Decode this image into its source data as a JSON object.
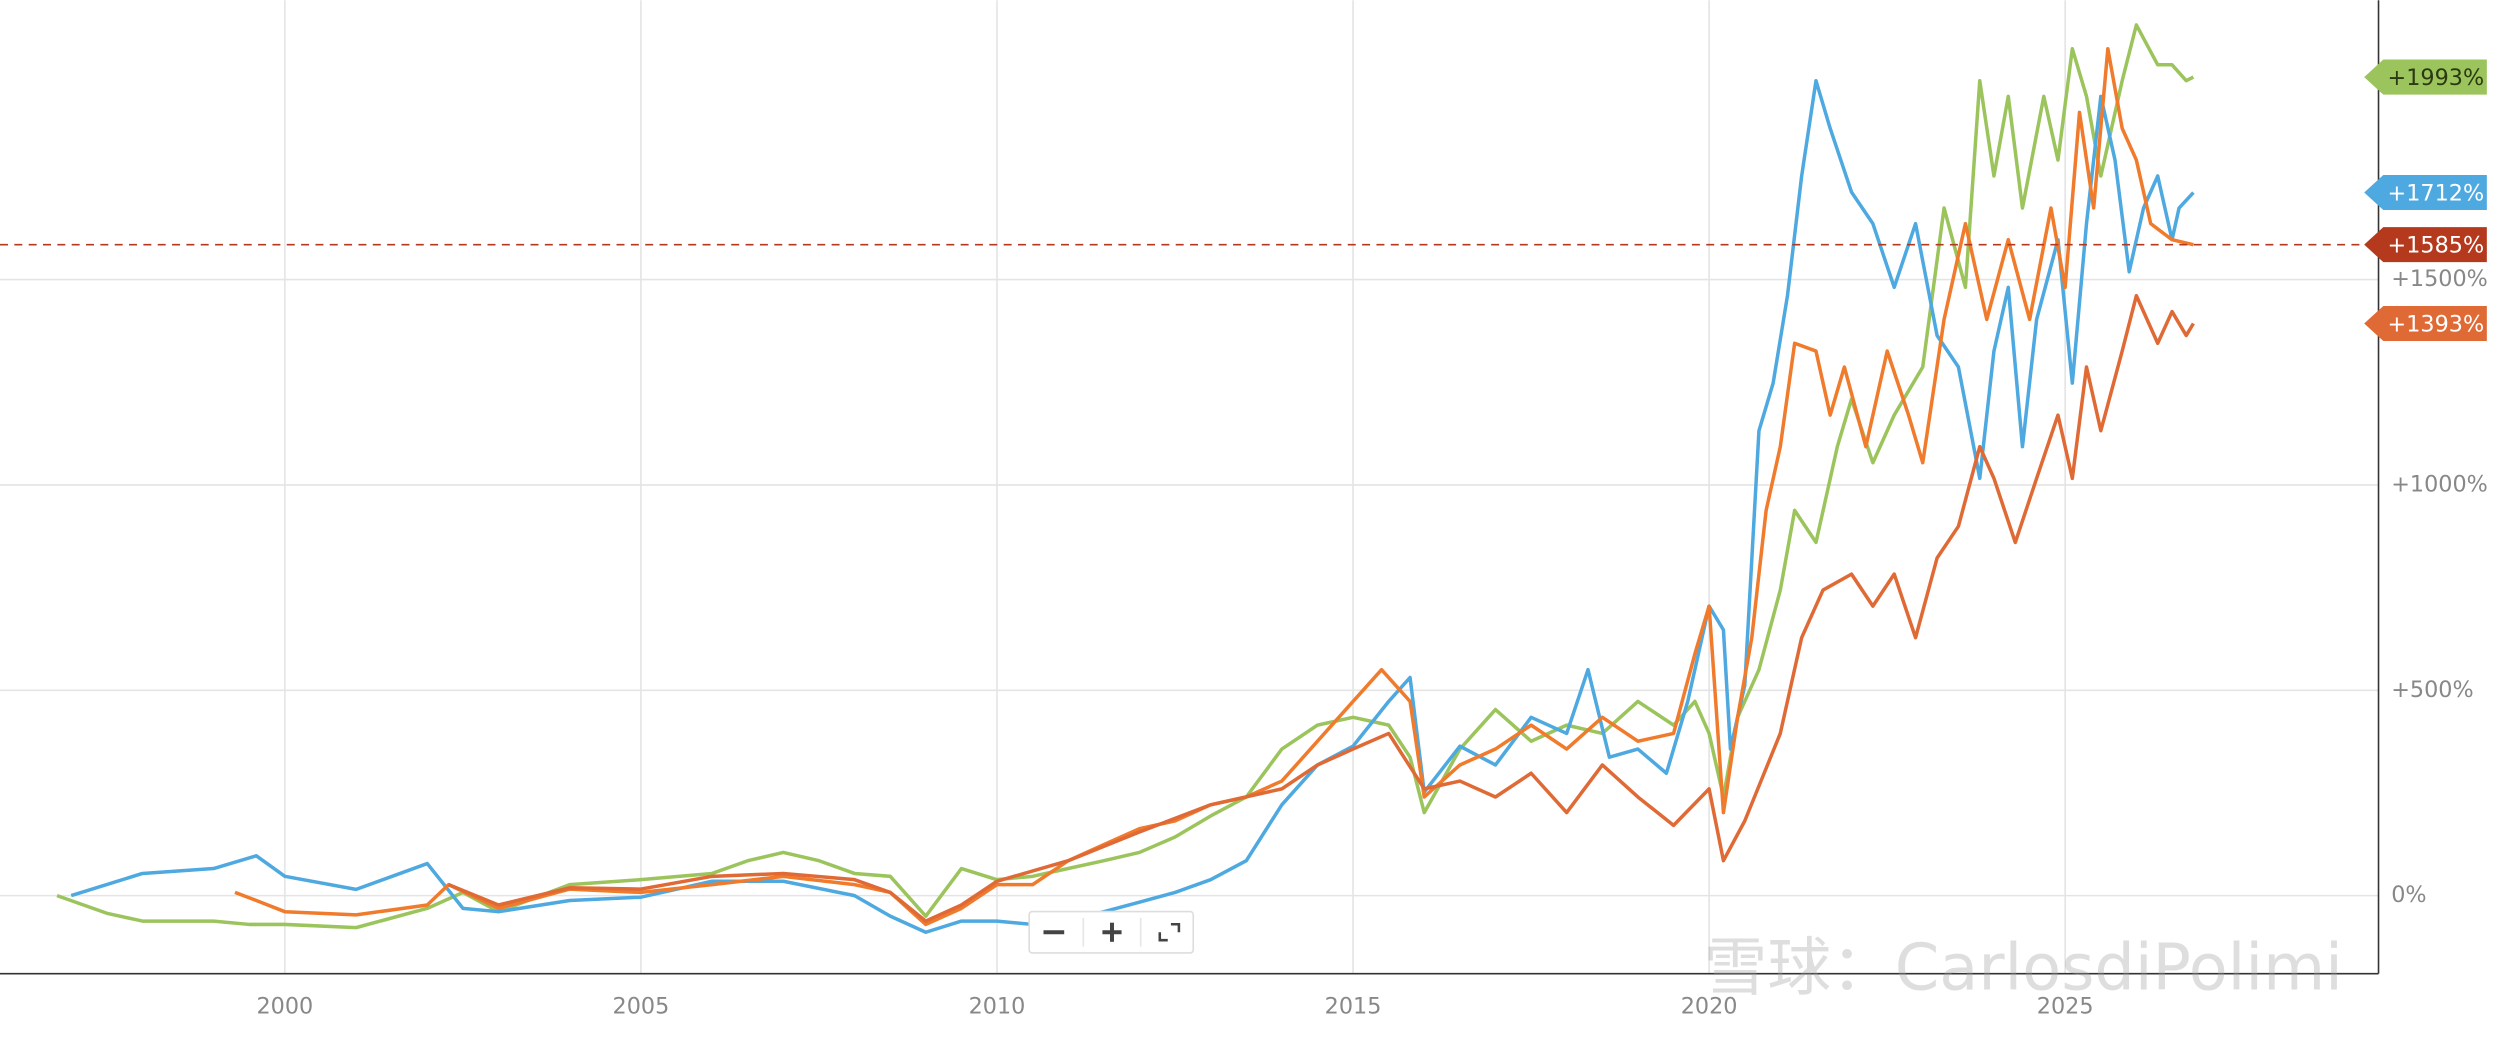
{
  "chart_data": {
    "type": "line",
    "xlim": [
      1996,
      2029.4
    ],
    "ylim": [
      -190,
      2180
    ],
    "xticks": [
      2000,
      2005,
      2010,
      2015,
      2020,
      2025
    ],
    "yticks": [
      {
        "value": 0,
        "label": "0%"
      },
      {
        "value": 500,
        "label": "+500%"
      },
      {
        "value": 1000,
        "label": "+1000%"
      },
      {
        "value": 1500,
        "label": "+1500%"
      }
    ],
    "grid": true,
    "series": [
      {
        "color": "#9cc45c",
        "x": [
          1996.8,
          1997.5,
          1998,
          1999,
          1999.5,
          2000,
          2001,
          2002,
          2002.5,
          2003,
          2004,
          2005,
          2006,
          2006.5,
          2007,
          2007.5,
          2008,
          2008.5,
          2009,
          2009.5,
          2010,
          2010.5,
          2011,
          2011.5,
          2012,
          2012.5,
          2013,
          2013.5,
          2014,
          2014.5,
          2015,
          2015.5,
          2015.8,
          2016,
          2016.5,
          2017,
          2017.5,
          2018,
          2018.5,
          2019,
          2019.5,
          2019.8,
          2020,
          2020.2,
          2020.4,
          2020.7,
          2021,
          2021.2,
          2021.5,
          2021.8,
          2022,
          2022.3,
          2022.6,
          2023,
          2023.3,
          2023.6,
          2023.8,
          2024,
          2024.2,
          2024.4,
          2024.7,
          2024.9,
          2025.1,
          2025.3,
          2025.5,
          2025.8,
          2026,
          2026.3,
          2026.5,
          2026.7,
          2026.8
        ],
        "values": [
          0,
          -43,
          -62,
          -62,
          -70,
          -70,
          -78,
          -31,
          8,
          -39,
          27,
          39,
          54,
          85,
          105,
          85,
          54,
          47,
          -50,
          66,
          39,
          47,
          66,
          85,
          105,
          143,
          194,
          240,
          357,
          415,
          434,
          415,
          337,
          202,
          357,
          453,
          376,
          415,
          395,
          473,
          415,
          473,
          395,
          240,
          434,
          550,
          744,
          938,
          860,
          1093,
          1209,
          1054,
          1170,
          1287,
          1674,
          1481,
          1984,
          1752,
          1946,
          1674,
          1946,
          1791,
          2062,
          1946,
          1752,
          1984,
          2120,
          2023,
          2023,
          1984,
          1993
        ]
      },
      {
        "color": "#4ea9e0",
        "x": [
          1997,
          1998,
          1999,
          1999.6,
          2000,
          2001,
          2002,
          2002.5,
          2003,
          2004,
          2005,
          2006,
          2007,
          2008,
          2008.5,
          2009,
          2009.5,
          2010,
          2010.5,
          2011,
          2011.5,
          2012,
          2012.5,
          2013,
          2013.5,
          2014,
          2014.5,
          2015,
          2015.5,
          2015.8,
          2016,
          2016.5,
          2017,
          2017.5,
          2018,
          2018.3,
          2018.6,
          2019,
          2019.4,
          2019.7,
          2020,
          2020.2,
          2020.3,
          2020.5,
          2020.7,
          2020.9,
          2021.1,
          2021.3,
          2021.5,
          2021.7,
          2022,
          2022.3,
          2022.6,
          2022.9,
          2023.2,
          2023.5,
          2023.8,
          2024,
          2024.2,
          2024.4,
          2024.6,
          2024.9,
          2025.1,
          2025.3,
          2025.5,
          2025.7,
          2025.9,
          2026.1,
          2026.3,
          2026.5,
          2026.6,
          2026.8
        ],
        "values": [
          0,
          54,
          66,
          97,
          47,
          15,
          78,
          -31,
          -39,
          -12,
          -4,
          35,
          35,
          0,
          -50,
          -89,
          -62,
          -62,
          -70,
          -62,
          -39,
          -16,
          8,
          39,
          85,
          221,
          318,
          364,
          473,
          531,
          252,
          364,
          318,
          434,
          395,
          550,
          337,
          357,
          298,
          473,
          705,
          647,
          357,
          512,
          1132,
          1248,
          1461,
          1752,
          1984,
          1868,
          1713,
          1636,
          1481,
          1636,
          1364,
          1287,
          1016,
          1326,
          1481,
          1093,
          1403,
          1597,
          1248,
          1636,
          1946,
          1791,
          1519,
          1674,
          1752,
          1597,
          1674,
          1712
        ]
      },
      {
        "color": "#f07b2c",
        "x": [
          1999.3,
          1999.6,
          2000,
          2001,
          2002,
          2002.3,
          2003,
          2004,
          2005,
          2006,
          2007,
          2008,
          2008.5,
          2009,
          2009.5,
          2010,
          2010.5,
          2011,
          2011.5,
          2012,
          2012.5,
          2013,
          2013.5,
          2014,
          2014.5,
          2015,
          2015.4,
          2015.8,
          2016,
          2016.5,
          2017,
          2017.5,
          2018,
          2018.5,
          2019,
          2019.5,
          2019.8,
          2020,
          2020.2,
          2020.4,
          2020.6,
          2020.8,
          2021,
          2021.2,
          2021.5,
          2021.7,
          2021.9,
          2022.2,
          2022.5,
          2022.8,
          2023,
          2023.3,
          2023.6,
          2023.9,
          2024.2,
          2024.5,
          2024.8,
          2025,
          2025.2,
          2025.4,
          2025.6,
          2025.8,
          2026,
          2026.2,
          2026.5,
          2026.8
        ],
        "values": [
          8,
          -12,
          -39,
          -47,
          -23,
          27,
          -31,
          16,
          8,
          27,
          47,
          27,
          8,
          -70,
          -31,
          27,
          27,
          85,
          124,
          163,
          182,
          221,
          240,
          279,
          376,
          473,
          550,
          473,
          240,
          318,
          357,
          415,
          357,
          434,
          376,
          395,
          589,
          705,
          202,
          434,
          628,
          938,
          1093,
          1345,
          1326,
          1170,
          1287,
          1093,
          1326,
          1170,
          1054,
          1403,
          1636,
          1403,
          1597,
          1403,
          1674,
          1481,
          1907,
          1674,
          2062,
          1868,
          1791,
          1636,
          1597,
          1585
        ]
      },
      {
        "color": "#e06a35",
        "x": [
          2002.3,
          2003,
          2004,
          2005,
          2006,
          2007,
          2008,
          2008.5,
          2009,
          2009.5,
          2010,
          2011,
          2012,
          2013,
          2014,
          2014.5,
          2015,
          2015.5,
          2016,
          2016.5,
          2017,
          2017.5,
          2018,
          2018.5,
          2019,
          2019.5,
          2020,
          2020.2,
          2020.5,
          2021,
          2021.3,
          2021.6,
          2022,
          2022.3,
          2022.6,
          2022.9,
          2023.2,
          2023.5,
          2023.8,
          2024,
          2024.3,
          2024.6,
          2024.9,
          2025.1,
          2025.3,
          2025.5,
          2025.8,
          2026,
          2026.3,
          2026.5,
          2026.7,
          2026.8
        ],
        "values": [
          27,
          -23,
          19,
          16,
          47,
          54,
          39,
          8,
          -62,
          -23,
          35,
          85,
          155,
          221,
          260,
          318,
          357,
          395,
          260,
          279,
          240,
          298,
          202,
          318,
          240,
          171,
          260,
          85,
          182,
          395,
          628,
          744,
          783,
          705,
          783,
          628,
          822,
          899,
          1093,
          1016,
          860,
          1016,
          1170,
          1016,
          1287,
          1132,
          1326,
          1461,
          1345,
          1422,
          1364,
          1393
        ]
      }
    ],
    "annotations": [
      {
        "value": 1993,
        "label": "+1993%",
        "color": "#9cc45c"
      },
      {
        "value": 1712,
        "label": "+1712%",
        "color": "#4ea9e0"
      },
      {
        "value": 1585,
        "label": "+1585%",
        "color": "#b5391c",
        "dashed": true
      },
      {
        "value": 1393,
        "label": "+1393%",
        "color": "#e06a35"
      }
    ],
    "watermark": "雪球：CarlosdiPolimi"
  }
}
